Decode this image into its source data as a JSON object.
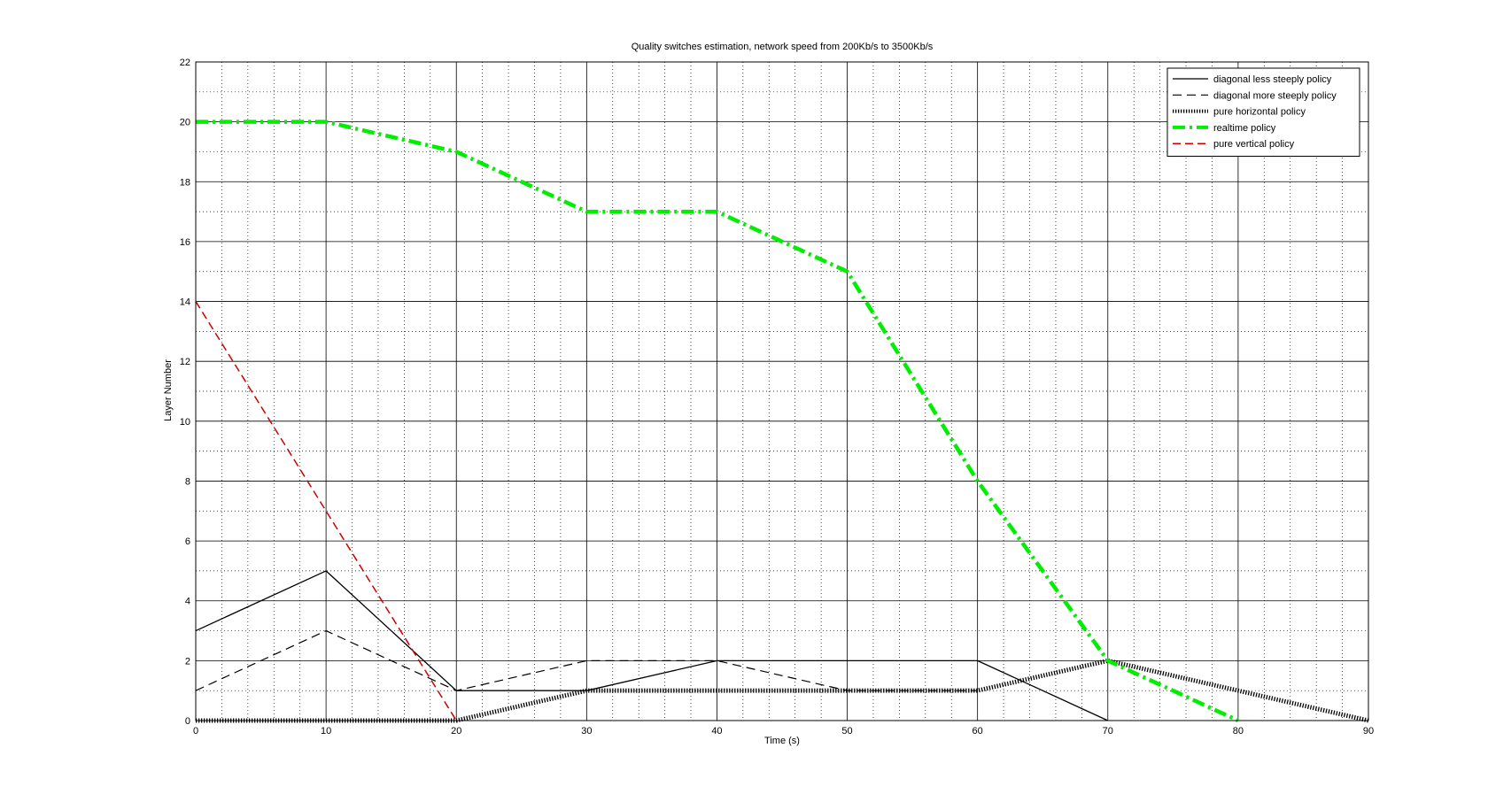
{
  "chart_data": {
    "type": "line",
    "title": "Quality switches estimation, network speed from 200Kb/s to 3500Kb/s",
    "xlabel": "Time (s)",
    "ylabel": "Layer Number",
    "xlim": [
      0,
      90
    ],
    "ylim": [
      0,
      22
    ],
    "x_ticks": [
      "0",
      "10",
      "20",
      "30",
      "40",
      "50",
      "60",
      "70",
      "80",
      "90"
    ],
    "y_ticks": [
      "0",
      "2",
      "4",
      "6",
      "8",
      "10",
      "12",
      "14",
      "16",
      "18",
      "20",
      "22"
    ],
    "grid": "major solid, minor dotted",
    "legend_position": "top-right",
    "series": [
      {
        "name": "diagonal less steeply policy",
        "color": "#000000",
        "style": "solid",
        "x": [
          0,
          10,
          20,
          30,
          40,
          50,
          60,
          70
        ],
        "y": [
          3,
          5,
          1,
          1,
          2,
          2,
          2,
          0
        ]
      },
      {
        "name": "diagonal more steeply policy",
        "color": "#000000",
        "style": "dashed",
        "x": [
          0,
          10,
          20,
          30,
          40,
          50,
          60
        ],
        "y": [
          1,
          3,
          1,
          2,
          2,
          1,
          1
        ]
      },
      {
        "name": "pure horizontal policy",
        "color": "#000000",
        "style": "dotted-thick",
        "x": [
          0,
          10,
          20,
          30,
          40,
          50,
          60,
          70,
          80,
          90
        ],
        "y": [
          0,
          0,
          0,
          1,
          1,
          1,
          1,
          2,
          1,
          0
        ]
      },
      {
        "name": "realtime policy",
        "color": "#00ee00",
        "style": "dashdot-thick",
        "x": [
          0,
          10,
          20,
          30,
          40,
          50,
          60,
          70,
          80
        ],
        "y": [
          20,
          20,
          19,
          17,
          17,
          15,
          8,
          2,
          0
        ]
      },
      {
        "name": "pure vertical policy",
        "color": "#cc0000",
        "style": "dashed",
        "x": [
          0,
          10,
          20
        ],
        "y": [
          14,
          7,
          0
        ]
      }
    ]
  }
}
